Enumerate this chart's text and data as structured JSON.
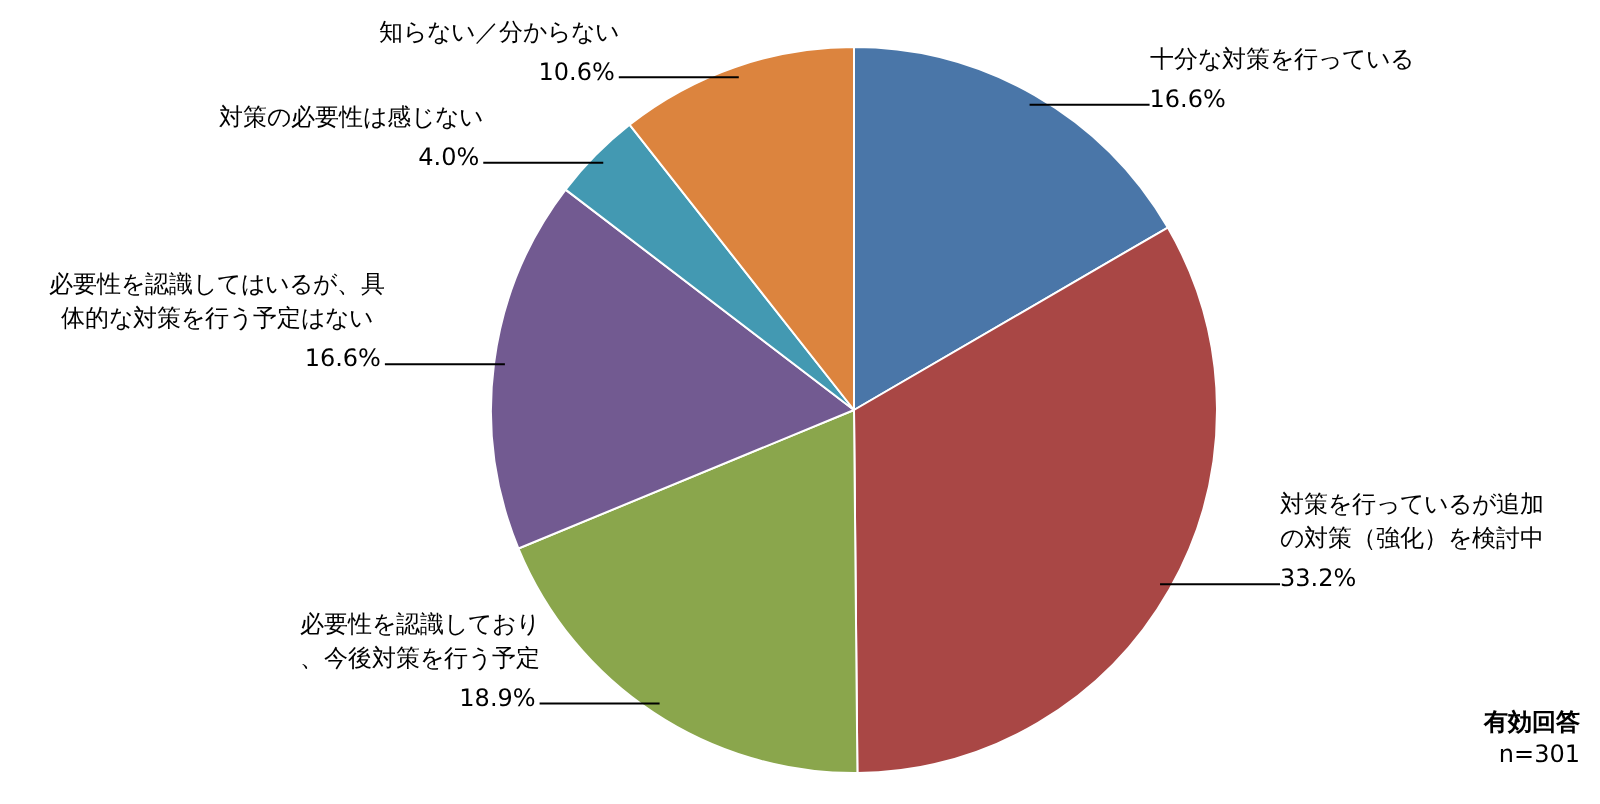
{
  "chart_data": {
    "type": "pie",
    "categories": [
      "十分な対策を行っている",
      "対策を行っているが追加の対策（強化）を検討中",
      "必要性を認識しており、今後対策を行う予定",
      "必要性を認識してはいるが、具体的な対策を行う予定はない",
      "対策の必要性は感じない",
      "知らない／分からない"
    ],
    "values": [
      16.6,
      33.2,
      18.9,
      16.6,
      4.0,
      10.6
    ],
    "colors": [
      "#4a76a8",
      "#a94745",
      "#8aa64c",
      "#725a91",
      "#4399b2",
      "#dc843e"
    ],
    "value_labels": [
      "16.6%",
      "33.2%",
      "18.9%",
      "16.6%",
      "4.0%",
      "10.6%"
    ],
    "annotations": [
      "有効回答",
      "n=301"
    ]
  }
}
